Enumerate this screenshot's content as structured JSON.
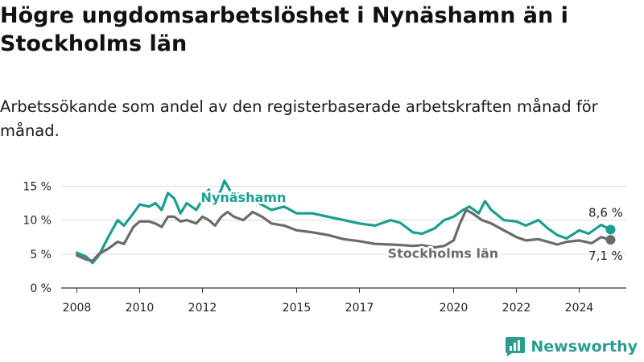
{
  "title": "Högre ungdomsarbetslöshet i Nynäshamn än i Stockholms län",
  "subtitle": "Arbetssökande som andel av den registerbaserade arbetskraften månad för månad.",
  "brand": {
    "name": "Newsworthy",
    "color": "#2a9d8f"
  },
  "chart_data": {
    "type": "line",
    "xlim": [
      2007.5,
      2025.5
    ],
    "ylim": [
      0,
      16
    ],
    "x_ticks": [
      2008,
      2010,
      2012,
      2015,
      2017,
      2020,
      2022,
      2024
    ],
    "x_tick_labels": [
      "2008",
      "2010",
      "2012",
      "2015",
      "2017",
      "2020",
      "2022",
      "2024"
    ],
    "y_ticks": [
      0,
      5,
      10,
      15
    ],
    "y_tick_labels": [
      "0 %",
      "5 %",
      "10 %",
      "15 %"
    ],
    "grid": "horizontal",
    "series": [
      {
        "name": "Nynäshamn",
        "color": "#1a9e8f",
        "end_label": "8,6 %",
        "points": [
          [
            2008.0,
            5.2
          ],
          [
            2008.3,
            4.6
          ],
          [
            2008.5,
            3.7
          ],
          [
            2008.7,
            4.8
          ],
          [
            2009.0,
            7.5
          ],
          [
            2009.3,
            10.0
          ],
          [
            2009.5,
            9.2
          ],
          [
            2009.8,
            11.0
          ],
          [
            2010.0,
            12.3
          ],
          [
            2010.3,
            12.0
          ],
          [
            2010.5,
            12.5
          ],
          [
            2010.7,
            11.5
          ],
          [
            2010.9,
            14.0
          ],
          [
            2011.1,
            13.2
          ],
          [
            2011.3,
            11.0
          ],
          [
            2011.5,
            12.5
          ],
          [
            2011.8,
            11.5
          ],
          [
            2012.0,
            13.0
          ],
          [
            2012.2,
            14.5
          ],
          [
            2012.4,
            13.0
          ],
          [
            2012.6,
            14.5
          ],
          [
            2012.7,
            15.8
          ],
          [
            2012.9,
            14.2
          ],
          [
            2013.2,
            13.8
          ],
          [
            2013.5,
            13.5
          ],
          [
            2013.8,
            12.5
          ],
          [
            2014.2,
            11.5
          ],
          [
            2014.6,
            12.0
          ],
          [
            2015.0,
            11.0
          ],
          [
            2015.5,
            11.0
          ],
          [
            2016.0,
            10.5
          ],
          [
            2016.5,
            10.0
          ],
          [
            2017.0,
            9.5
          ],
          [
            2017.5,
            9.2
          ],
          [
            2018.0,
            10.0
          ],
          [
            2018.3,
            9.6
          ],
          [
            2018.7,
            8.2
          ],
          [
            2019.0,
            8.0
          ],
          [
            2019.4,
            8.8
          ],
          [
            2019.7,
            10.0
          ],
          [
            2020.0,
            10.5
          ],
          [
            2020.3,
            11.5
          ],
          [
            2020.5,
            12.0
          ],
          [
            2020.8,
            11.0
          ],
          [
            2021.0,
            12.8
          ],
          [
            2021.2,
            11.5
          ],
          [
            2021.6,
            10.0
          ],
          [
            2022.0,
            9.8
          ],
          [
            2022.3,
            9.2
          ],
          [
            2022.7,
            10.0
          ],
          [
            2023.0,
            8.8
          ],
          [
            2023.3,
            7.8
          ],
          [
            2023.6,
            7.3
          ],
          [
            2024.0,
            8.5
          ],
          [
            2024.3,
            8.0
          ],
          [
            2024.7,
            9.3
          ],
          [
            2025.0,
            8.6
          ]
        ]
      },
      {
        "name": "Stockholms län",
        "color": "#6b6b6e",
        "end_label": "7,1 %",
        "points": [
          [
            2008.0,
            4.8
          ],
          [
            2008.3,
            4.2
          ],
          [
            2008.5,
            4.0
          ],
          [
            2008.7,
            5.0
          ],
          [
            2009.0,
            5.8
          ],
          [
            2009.3,
            6.8
          ],
          [
            2009.5,
            6.5
          ],
          [
            2009.8,
            9.0
          ],
          [
            2010.0,
            9.8
          ],
          [
            2010.3,
            9.8
          ],
          [
            2010.5,
            9.5
          ],
          [
            2010.7,
            9.0
          ],
          [
            2010.9,
            10.5
          ],
          [
            2011.1,
            10.5
          ],
          [
            2011.3,
            9.8
          ],
          [
            2011.5,
            10.0
          ],
          [
            2011.8,
            9.5
          ],
          [
            2012.0,
            10.5
          ],
          [
            2012.2,
            10.0
          ],
          [
            2012.4,
            9.2
          ],
          [
            2012.6,
            10.5
          ],
          [
            2012.8,
            11.2
          ],
          [
            2013.0,
            10.5
          ],
          [
            2013.3,
            10.0
          ],
          [
            2013.6,
            11.2
          ],
          [
            2013.9,
            10.5
          ],
          [
            2014.2,
            9.5
          ],
          [
            2014.6,
            9.2
          ],
          [
            2015.0,
            8.5
          ],
          [
            2015.5,
            8.2
          ],
          [
            2016.0,
            7.8
          ],
          [
            2016.5,
            7.2
          ],
          [
            2017.0,
            6.9
          ],
          [
            2017.5,
            6.5
          ],
          [
            2018.0,
            6.4
          ],
          [
            2018.4,
            6.3
          ],
          [
            2018.7,
            6.2
          ],
          [
            2019.0,
            6.3
          ],
          [
            2019.4,
            6.0
          ],
          [
            2019.7,
            6.2
          ],
          [
            2020.0,
            7.0
          ],
          [
            2020.2,
            9.5
          ],
          [
            2020.4,
            11.5
          ],
          [
            2020.6,
            11.0
          ],
          [
            2020.9,
            10.0
          ],
          [
            2021.2,
            9.5
          ],
          [
            2021.6,
            8.5
          ],
          [
            2022.0,
            7.5
          ],
          [
            2022.3,
            7.0
          ],
          [
            2022.7,
            7.2
          ],
          [
            2023.0,
            6.8
          ],
          [
            2023.3,
            6.4
          ],
          [
            2023.6,
            6.8
          ],
          [
            2024.0,
            7.0
          ],
          [
            2024.4,
            6.6
          ],
          [
            2024.7,
            7.5
          ],
          [
            2025.0,
            7.1
          ]
        ]
      }
    ]
  }
}
